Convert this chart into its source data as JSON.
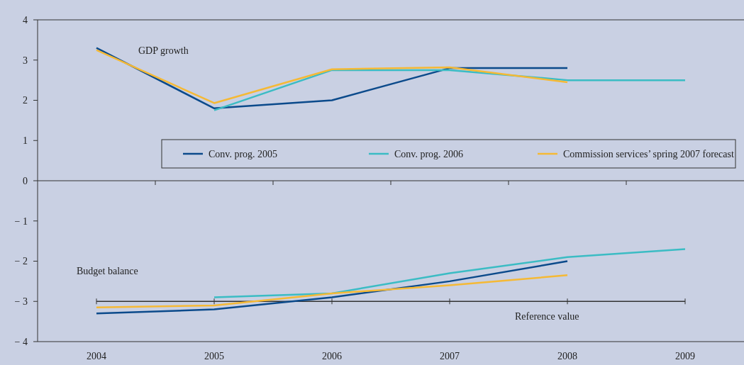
{
  "chart_data": {
    "type": "line",
    "categories": [
      "2004",
      "2005",
      "2006",
      "2007",
      "2008",
      "2009"
    ],
    "series": [
      {
        "name": "Conv. prog. 2005",
        "color": "#0b4a8b",
        "values": [
          3.3,
          1.8,
          2.0,
          2.8,
          2.8,
          null
        ]
      },
      {
        "name": "Conv. prog. 2006",
        "color": "#3bbcc4",
        "values": [
          null,
          1.75,
          2.75,
          2.75,
          2.5,
          2.5
        ]
      },
      {
        "name": "Commission services’ spring 2007 forecast",
        "color": "#f5b935",
        "values": [
          3.25,
          1.93,
          2.77,
          2.82,
          2.45,
          null
        ]
      },
      {
        "color": "#0b4a8b",
        "values": [
          -3.3,
          -3.2,
          -2.9,
          -2.5,
          -2.0,
          null
        ]
      },
      {
        "color": "#3bbcc4",
        "values": [
          null,
          -2.9,
          -2.8,
          -2.3,
          -1.9,
          -1.7
        ]
      },
      {
        "color": "#f5b935",
        "values": [
          -3.15,
          -3.1,
          -2.8,
          -2.6,
          -2.35,
          null
        ]
      }
    ],
    "ylim": [
      -4,
      4
    ],
    "yticks": [
      {
        "value": -4,
        "label": "− 4"
      },
      {
        "value": -3,
        "label": "− 3"
      },
      {
        "value": -2,
        "label": "− 2"
      },
      {
        "value": -1,
        "label": "− 1"
      },
      0,
      1,
      2,
      3,
      4
    ],
    "ref_lines": [
      {
        "axis": "y",
        "value": -3,
        "label": "Reference value",
        "color": "#333333"
      }
    ],
    "annotations": [
      "GDP growth",
      "Budget balance"
    ],
    "legend": "top right",
    "grid": false,
    "line_style": "solid"
  }
}
